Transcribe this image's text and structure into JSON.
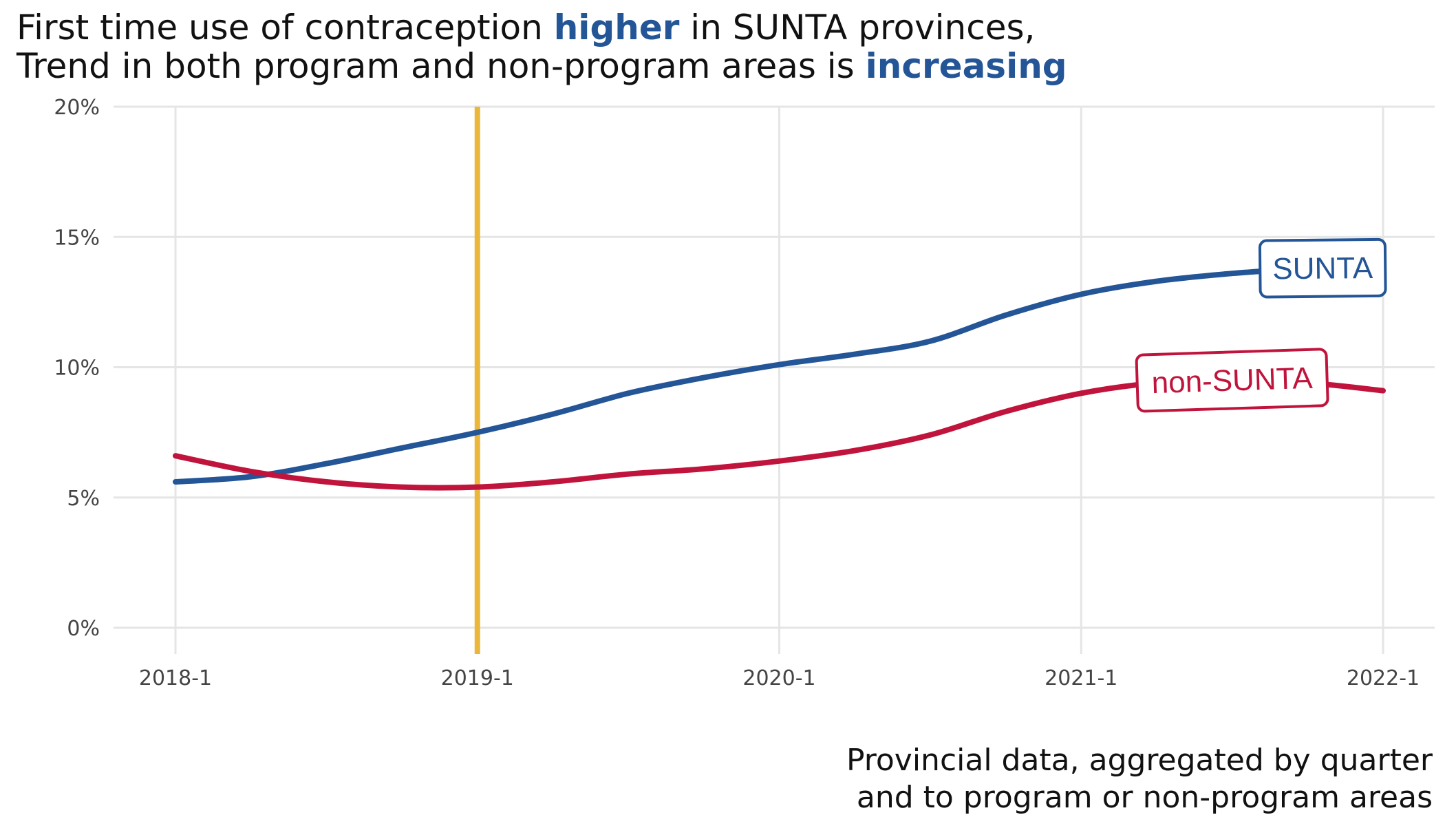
{
  "title": {
    "line1": [
      {
        "text": "First time use of contraception ",
        "highlight": false
      },
      {
        "text": "higher",
        "highlight": true
      },
      {
        "text": " in SUNTA provinces,",
        "highlight": false
      }
    ],
    "line2": [
      {
        "text": "Trend in both program and non-program areas is ",
        "highlight": false
      },
      {
        "text": "increasing",
        "highlight": true
      }
    ]
  },
  "caption": {
    "line1": "Provincial data, aggregated by quarter",
    "line2": "and to program or non-program areas"
  },
  "colors": {
    "highlight": "#235597",
    "sunta": "#235597",
    "non_sunta": "#C0143C",
    "program_start": "#EBB73B",
    "grid": "#E5E5E5",
    "text": "#111111",
    "tick": "#444444"
  },
  "chart_data": {
    "type": "line",
    "x_axis": {
      "ticks": [
        "2018-1",
        "2019-1",
        "2020-1",
        "2021-1",
        "2022-1"
      ],
      "range": [
        2018.0,
        2022.0
      ]
    },
    "y_axis": {
      "ticks": [
        "0%",
        "5%",
        "10%",
        "15%",
        "20%"
      ],
      "range": [
        0,
        20
      ],
      "unit": "%"
    },
    "grid": true,
    "x": [
      2018.0,
      2018.25,
      2018.5,
      2018.75,
      2019.0,
      2019.25,
      2019.5,
      2019.75,
      2020.0,
      2020.25,
      2020.5,
      2020.75,
      2021.0,
      2021.25,
      2021.5,
      2021.75,
      2022.0
    ],
    "series": [
      {
        "name": "SUNTA",
        "values": [
          5.6,
          5.8,
          6.3,
          6.9,
          7.5,
          8.2,
          9.0,
          9.6,
          10.1,
          10.5,
          11.0,
          12.0,
          12.8,
          13.3,
          13.6,
          13.8,
          null
        ]
      },
      {
        "name": "non-SUNTA",
        "values": [
          6.6,
          6.0,
          5.6,
          5.4,
          5.4,
          5.6,
          5.9,
          6.1,
          6.4,
          6.8,
          7.4,
          8.3,
          9.0,
          9.4,
          9.5,
          9.4,
          9.1
        ]
      }
    ],
    "reference_line": {
      "x": 2019.0,
      "orientation": "vertical"
    },
    "labels": {
      "SUNTA": {
        "text": "SUNTA",
        "at_x": 2021.8,
        "at_y": 13.8
      },
      "non-SUNTA": {
        "text": "non-SUNTA",
        "at_x": 2021.5,
        "at_y": 9.5
      }
    }
  }
}
